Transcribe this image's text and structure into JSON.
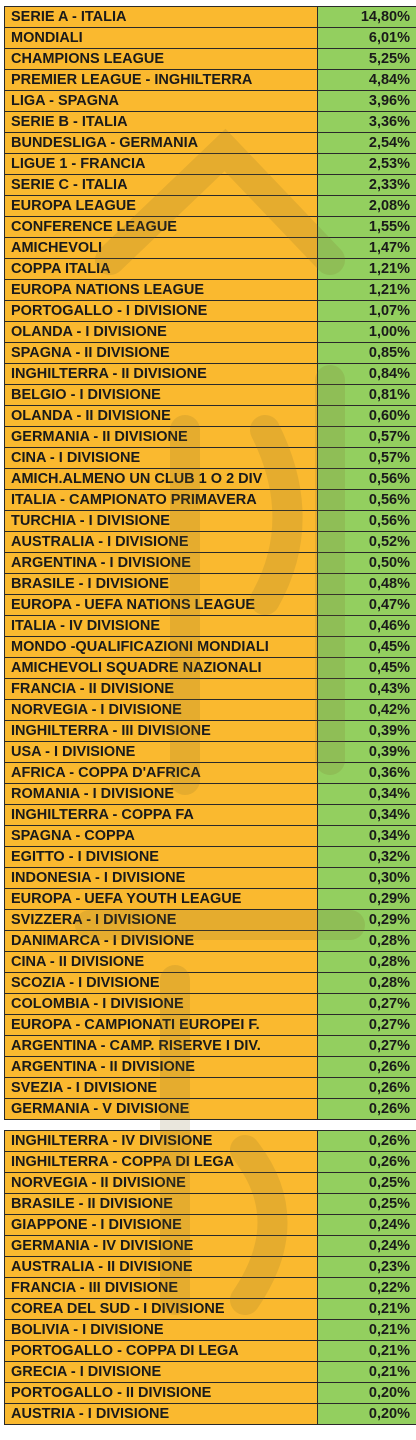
{
  "colors": {
    "league_cell": "#fab92f",
    "percentage_cell": "#93cf5f",
    "border": "#2a2a2a"
  },
  "table1": [
    {
      "name": "SERIE A - ITALIA",
      "pct": "14,80%"
    },
    {
      "name": "MONDIALI",
      "pct": "6,01%"
    },
    {
      "name": "CHAMPIONS LEAGUE",
      "pct": "5,25%"
    },
    {
      "name": "PREMIER LEAGUE - INGHILTERRA",
      "pct": "4,84%"
    },
    {
      "name": "LIGA - SPAGNA",
      "pct": "3,96%"
    },
    {
      "name": "SERIE B - ITALIA",
      "pct": "3,36%"
    },
    {
      "name": "BUNDESLIGA - GERMANIA",
      "pct": "2,54%"
    },
    {
      "name": "LIGUE 1 - FRANCIA",
      "pct": "2,53%"
    },
    {
      "name": "SERIE C - ITALIA",
      "pct": "2,33%"
    },
    {
      "name": "EUROPA LEAGUE",
      "pct": "2,08%"
    },
    {
      "name": "CONFERENCE LEAGUE",
      "pct": "1,55%"
    },
    {
      "name": "AMICHEVOLI",
      "pct": "1,47%"
    },
    {
      "name": "COPPA ITALIA",
      "pct": "1,21%"
    },
    {
      "name": "EUROPA NATIONS LEAGUE",
      "pct": "1,21%"
    },
    {
      "name": "PORTOGALLO - I DIVISIONE",
      "pct": "1,07%"
    },
    {
      "name": "OLANDA - I DIVISIONE",
      "pct": "1,00%"
    },
    {
      "name": "SPAGNA - II DIVISIONE",
      "pct": "0,85%"
    },
    {
      "name": "INGHILTERRA - II DIVISIONE",
      "pct": "0,84%"
    },
    {
      "name": "BELGIO - I DIVISIONE",
      "pct": "0,81%"
    },
    {
      "name": "OLANDA - II DIVISIONE",
      "pct": "0,60%"
    },
    {
      "name": "GERMANIA - II DIVISIONE",
      "pct": "0,57%"
    },
    {
      "name": "CINA - I DIVISIONE",
      "pct": "0,57%"
    },
    {
      "name": "AMICH.ALMENO UN CLUB 1 O 2 DIV",
      "pct": "0,56%"
    },
    {
      "name": "ITALIA - CAMPIONATO PRIMAVERA",
      "pct": "0,56%"
    },
    {
      "name": "TURCHIA - I DIVISIONE",
      "pct": "0,56%"
    },
    {
      "name": "AUSTRALIA - I DIVISIONE",
      "pct": "0,52%"
    },
    {
      "name": "ARGENTINA - I DIVISIONE",
      "pct": "0,50%"
    },
    {
      "name": "BRASILE - I DIVISIONE",
      "pct": "0,48%"
    },
    {
      "name": "EUROPA - UEFA NATIONS LEAGUE",
      "pct": "0,47%"
    },
    {
      "name": "ITALIA - IV DIVISIONE",
      "pct": "0,46%"
    },
    {
      "name": "MONDO -QUALIFICAZIONI MONDIALI",
      "pct": "0,45%"
    },
    {
      "name": "AMICHEVOLI SQUADRE NAZIONALI",
      "pct": "0,45%"
    },
    {
      "name": "FRANCIA - II DIVISIONE",
      "pct": "0,43%"
    },
    {
      "name": "NORVEGIA - I DIVISIONE",
      "pct": "0,42%"
    },
    {
      "name": "INGHILTERRA - III DIVISIONE",
      "pct": "0,39%"
    },
    {
      "name": "USA - I DIVISIONE",
      "pct": "0,39%"
    },
    {
      "name": "AFRICA - COPPA D'AFRICA",
      "pct": "0,36%"
    },
    {
      "name": "ROMANIA - I DIVISIONE",
      "pct": "0,34%"
    },
    {
      "name": "INGHILTERRA - COPPA FA",
      "pct": "0,34%"
    },
    {
      "name": "SPAGNA - COPPA",
      "pct": "0,34%"
    },
    {
      "name": "EGITTO - I DIVISIONE",
      "pct": "0,32%"
    },
    {
      "name": "INDONESIA - I DIVISIONE",
      "pct": "0,30%"
    },
    {
      "name": "EUROPA - UEFA YOUTH LEAGUE",
      "pct": "0,29%"
    },
    {
      "name": "SVIZZERA - I DIVISIONE",
      "pct": "0,29%"
    },
    {
      "name": "DANIMARCA - I DIVISIONE",
      "pct": "0,28%"
    },
    {
      "name": "CINA - II DIVISIONE",
      "pct": "0,28%"
    },
    {
      "name": "SCOZIA - I DIVISIONE",
      "pct": "0,28%"
    },
    {
      "name": "COLOMBIA - I DIVISIONE",
      "pct": "0,27%"
    },
    {
      "name": "EUROPA - CAMPIONATI EUROPEI F.",
      "pct": "0,27%"
    },
    {
      "name": "ARGENTINA - CAMP. RISERVE I DIV.",
      "pct": "0,27%"
    },
    {
      "name": "ARGENTINA - II DIVISIONE",
      "pct": "0,26%"
    },
    {
      "name": "SVEZIA - I DIVISIONE",
      "pct": "0,26%"
    },
    {
      "name": "GERMANIA - V DIVISIONE",
      "pct": "0,26%"
    }
  ],
  "table2": [
    {
      "name": "INGHILTERRA - IV DIVISIONE",
      "pct": "0,26%"
    },
    {
      "name": "INGHILTERRA - COPPA DI LEGA",
      "pct": "0,26%"
    },
    {
      "name": "NORVEGIA - II DIVISIONE",
      "pct": "0,25%"
    },
    {
      "name": "BRASILE - II DIVISIONE",
      "pct": "0,25%"
    },
    {
      "name": "GIAPPONE - I DIVISIONE",
      "pct": "0,24%"
    },
    {
      "name": "GERMANIA - IV DIVISIONE",
      "pct": "0,24%"
    },
    {
      "name": "AUSTRALIA - II DIVISIONE",
      "pct": "0,23%"
    },
    {
      "name": "FRANCIA - III DIVISIONE",
      "pct": "0,22%"
    },
    {
      "name": "COREA DEL SUD - I DIVISIONE",
      "pct": "0,21%"
    },
    {
      "name": "BOLIVIA - I DIVISIONE",
      "pct": "0,21%"
    },
    {
      "name": "PORTOGALLO - COPPA DI LEGA",
      "pct": "0,21%"
    },
    {
      "name": "GRECIA - I DIVISIONE",
      "pct": "0,21%"
    },
    {
      "name": "PORTOGALLO - II DIVISIONE",
      "pct": "0,20%"
    },
    {
      "name": "AUSTRIA - I DIVISIONE",
      "pct": "0,20%"
    }
  ]
}
